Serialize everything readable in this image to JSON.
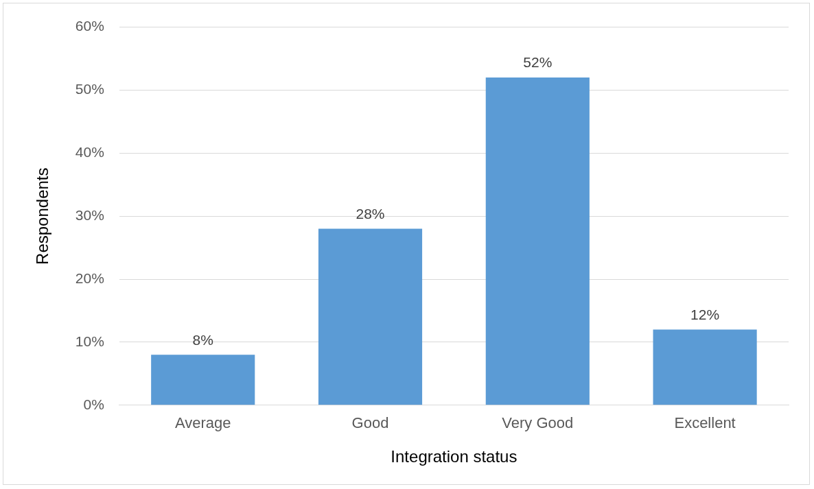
{
  "chart_data": {
    "type": "bar",
    "xlabel": "Integration status",
    "ylabel": "Respondents",
    "categories": [
      "Average",
      "Good",
      "Very Good",
      "Excellent"
    ],
    "values": [
      8,
      28,
      52,
      12
    ],
    "color": "#5b9bd5",
    "value_labels": [
      "8%",
      "28%",
      "52%",
      "12%"
    ],
    "ylim": [
      0,
      60
    ],
    "yticks": [
      {
        "value": 0,
        "label": "0%"
      },
      {
        "value": 10,
        "label": "10%"
      },
      {
        "value": 20,
        "label": "20%"
      },
      {
        "value": 30,
        "label": "30%"
      },
      {
        "value": 40,
        "label": "40%"
      },
      {
        "value": 50,
        "label": "50%"
      },
      {
        "value": 60,
        "label": "60%"
      }
    ],
    "grid": "y",
    "legend": false
  }
}
